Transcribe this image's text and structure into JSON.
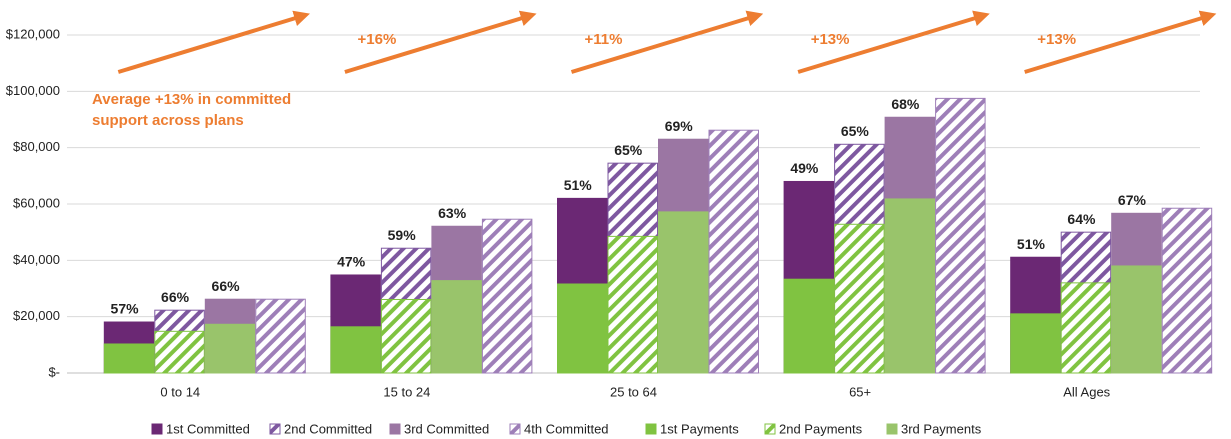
{
  "chart_data": {
    "type": "bar",
    "categories": [
      "0 to 14",
      "15 to 24",
      "25 to 64",
      "65+",
      "All Ages"
    ],
    "series": [
      {
        "name": "1st Committed",
        "color": "#6b2874",
        "hatched": false,
        "values": [
          18100,
          34800,
          62000,
          68000,
          41100
        ]
      },
      {
        "name": "2nd Committed",
        "color": "#7e58a0",
        "hatched": true,
        "values": [
          22300,
          44300,
          74500,
          81200,
          50000
        ]
      },
      {
        "name": "3rd Committed",
        "color": "#9b76a3",
        "hatched": false,
        "values": [
          26200,
          52100,
          83000,
          90800,
          56700
        ]
      },
      {
        "name": "4th Committed",
        "color": "#9e7fb8",
        "hatched": true,
        "values": [
          26200,
          54600,
          86200,
          97500,
          58500
        ]
      },
      {
        "name": "1st Payments",
        "color": "#80c341",
        "hatched": false,
        "values": [
          10300,
          16400,
          31600,
          33300,
          21000
        ]
      },
      {
        "name": "2nd Payments",
        "color": "#80c341",
        "hatched": true,
        "values": [
          14800,
          26100,
          48500,
          52800,
          32000
        ]
      },
      {
        "name": "3rd Payments",
        "color": "#99c46b",
        "hatched": false,
        "values": [
          17300,
          32800,
          57200,
          61800,
          38000
        ]
      }
    ],
    "percent_labels": [
      [
        "57%",
        "66%",
        "66%"
      ],
      [
        "47%",
        "59%",
        "63%"
      ],
      [
        "51%",
        "65%",
        "69%"
      ],
      [
        "49%",
        "65%",
        "68%"
      ],
      [
        "51%",
        "64%",
        "67%"
      ]
    ],
    "annotations": [
      "+16%",
      "+11%",
      "+13%",
      "+13%"
    ],
    "note": [
      "Average +13% in committed",
      "support across plans"
    ],
    "annotation_color": "#ed7d31",
    "ylim": [
      0,
      120000
    ],
    "yticks": [
      {
        "value": 0,
        "label": "$-"
      },
      {
        "value": 20000,
        "label": "$20,000"
      },
      {
        "value": 40000,
        "label": "$40,000"
      },
      {
        "value": 60000,
        "label": "$60,000"
      },
      {
        "value": 80000,
        "label": "$80,000"
      },
      {
        "value": 100000,
        "label": "$100,000"
      },
      {
        "value": 120000,
        "label": "$120,000"
      }
    ],
    "grid": true
  }
}
